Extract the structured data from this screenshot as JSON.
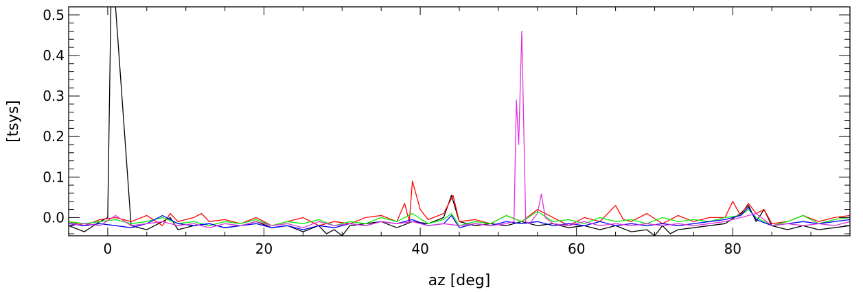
{
  "chart_data": {
    "type": "line",
    "title": "",
    "xlabel": "az [deg]",
    "ylabel": "[tsys]",
    "xlim": [
      -5,
      95
    ],
    "ylim": [
      -0.045,
      0.52
    ],
    "xticks": [
      0,
      20,
      40,
      60,
      80
    ],
    "xtick_labels": [
      "0",
      "20",
      "40",
      "60",
      "80"
    ],
    "yticks": [
      0.0,
      0.1,
      0.2,
      0.3,
      0.4,
      0.5
    ],
    "ytick_labels": [
      "0.0",
      "0.1",
      "0.2",
      "0.3",
      "0.4",
      "0.5"
    ],
    "grid": false,
    "legend": "none",
    "series": [
      {
        "color": "#000000",
        "x": [
          -5,
          -3,
          -1,
          0,
          0.4,
          1,
          3,
          5,
          7,
          8,
          9,
          11,
          13,
          15,
          17,
          19,
          21,
          23,
          25,
          27,
          28,
          29,
          30,
          31,
          33,
          35,
          37,
          39,
          41,
          43,
          44,
          45,
          47,
          49,
          51,
          53,
          55,
          57,
          59,
          61,
          63,
          65,
          67,
          69,
          70,
          71,
          72,
          73,
          75,
          77,
          79,
          81,
          82,
          83,
          84,
          85,
          87,
          89,
          91,
          93,
          95
        ],
        "y": [
          -0.02,
          -0.035,
          -0.01,
          0.0,
          0.52,
          0.52,
          -0.02,
          -0.03,
          -0.01,
          0.0,
          -0.03,
          -0.02,
          -0.015,
          -0.025,
          -0.02,
          -0.01,
          -0.025,
          -0.02,
          -0.035,
          -0.02,
          -0.04,
          -0.03,
          -0.045,
          -0.02,
          -0.015,
          -0.01,
          -0.025,
          -0.01,
          -0.015,
          0.0,
          0.055,
          -0.01,
          -0.02,
          -0.015,
          -0.02,
          -0.01,
          -0.02,
          -0.015,
          -0.025,
          -0.02,
          -0.03,
          -0.02,
          -0.035,
          -0.03,
          -0.045,
          -0.02,
          -0.04,
          -0.03,
          -0.025,
          -0.02,
          -0.015,
          0.01,
          0.03,
          -0.01,
          0.02,
          -0.02,
          -0.03,
          -0.02,
          -0.03,
          -0.025,
          -0.02
        ]
      },
      {
        "color": "#ff0000",
        "x": [
          -5,
          -3,
          -1,
          1,
          3,
          5,
          7,
          8,
          9,
          11,
          12,
          13,
          15,
          17,
          19,
          21,
          23,
          25,
          27,
          29,
          31,
          33,
          35,
          37,
          38,
          38.6,
          39,
          40,
          41,
          43,
          44.2,
          45,
          47,
          49,
          51,
          53,
          55,
          57,
          59,
          61,
          63,
          65,
          66,
          67,
          69,
          71,
          73,
          75,
          77,
          79,
          80,
          81,
          82,
          83,
          84,
          85,
          87,
          89,
          91,
          93,
          95
        ],
        "y": [
          -0.01,
          -0.02,
          -0.005,
          0.0,
          -0.01,
          0.005,
          -0.02,
          0.01,
          -0.01,
          0.0,
          0.01,
          -0.01,
          -0.005,
          -0.015,
          0.0,
          -0.02,
          -0.01,
          0.0,
          -0.02,
          -0.01,
          -0.015,
          0.0,
          0.005,
          -0.01,
          0.035,
          -0.01,
          0.09,
          0.02,
          -0.005,
          0.01,
          0.055,
          -0.01,
          -0.005,
          -0.015,
          0.005,
          -0.01,
          0.02,
          0.0,
          -0.02,
          0.0,
          -0.01,
          0.03,
          -0.005,
          -0.01,
          0.01,
          -0.015,
          0.005,
          -0.01,
          0.0,
          0.0,
          0.04,
          0.005,
          0.035,
          0.01,
          0.02,
          -0.015,
          -0.01,
          0.005,
          -0.01,
          0.0,
          0.005
        ]
      },
      {
        "color": "#00ee00",
        "x": [
          -5,
          -3,
          -1,
          1,
          3,
          5,
          7,
          9,
          11,
          13,
          15,
          17,
          19,
          21,
          23,
          25,
          27,
          29,
          31,
          33,
          35,
          37,
          39,
          41,
          43,
          44,
          45,
          47,
          49,
          51,
          53,
          55,
          57,
          59,
          61,
          63,
          65,
          67,
          69,
          71,
          73,
          75,
          77,
          79,
          81,
          82,
          83,
          85,
          87,
          89,
          91,
          93,
          95
        ],
        "y": [
          -0.01,
          -0.015,
          -0.01,
          -0.005,
          -0.015,
          -0.01,
          0.0,
          -0.015,
          -0.01,
          -0.02,
          -0.01,
          -0.015,
          -0.005,
          -0.02,
          -0.01,
          -0.015,
          -0.005,
          -0.02,
          -0.01,
          -0.015,
          0.0,
          -0.01,
          0.01,
          -0.015,
          -0.005,
          0.01,
          -0.02,
          -0.01,
          -0.015,
          0.005,
          -0.01,
          0.015,
          -0.01,
          -0.005,
          -0.015,
          0.0,
          -0.01,
          -0.005,
          -0.015,
          0.0,
          -0.01,
          -0.005,
          -0.01,
          0.0,
          0.005,
          0.02,
          0.0,
          -0.02,
          -0.01,
          0.005,
          -0.015,
          -0.005,
          0.0
        ]
      },
      {
        "color": "#0000ff",
        "x": [
          -5,
          -3,
          -1,
          1,
          3,
          5,
          7,
          9,
          11,
          13,
          15,
          17,
          19,
          21,
          23,
          25,
          27,
          29,
          31,
          33,
          35,
          37,
          39,
          41,
          43,
          44,
          45,
          47,
          49,
          51,
          53,
          55,
          57,
          59,
          61,
          63,
          65,
          67,
          69,
          71,
          73,
          75,
          77,
          79,
          81,
          82,
          83,
          85,
          87,
          89,
          91,
          93,
          95
        ],
        "y": [
          -0.015,
          -0.02,
          -0.015,
          -0.02,
          -0.025,
          -0.015,
          0.005,
          -0.015,
          -0.02,
          -0.015,
          -0.025,
          -0.02,
          -0.015,
          -0.025,
          -0.02,
          -0.03,
          -0.02,
          -0.025,
          -0.015,
          -0.02,
          -0.01,
          -0.015,
          -0.005,
          -0.02,
          -0.015,
          0.005,
          -0.025,
          -0.015,
          -0.02,
          -0.01,
          -0.015,
          -0.01,
          -0.02,
          -0.015,
          -0.02,
          -0.01,
          -0.02,
          -0.015,
          -0.02,
          -0.015,
          -0.02,
          -0.015,
          -0.01,
          -0.005,
          0.005,
          0.025,
          -0.005,
          -0.02,
          -0.015,
          -0.01,
          -0.015,
          -0.01,
          -0.005
        ]
      },
      {
        "color": "#dd33dd",
        "x": [
          -5,
          -3,
          -1,
          1,
          3,
          5,
          7,
          9,
          11,
          13,
          15,
          17,
          19,
          21,
          23,
          25,
          27,
          29,
          31,
          33,
          35,
          37,
          39,
          41,
          43,
          45,
          47,
          49,
          51,
          52,
          52.3,
          52.6,
          53,
          53.5,
          54,
          55,
          55.5,
          56,
          57,
          59,
          61,
          63,
          65,
          67,
          69,
          71,
          73,
          75,
          77,
          79,
          81,
          83,
          85,
          87,
          89,
          91,
          93,
          95
        ],
        "y": [
          -0.02,
          -0.015,
          -0.02,
          0.005,
          -0.02,
          -0.015,
          -0.01,
          -0.02,
          -0.015,
          -0.025,
          -0.015,
          -0.02,
          -0.01,
          -0.02,
          -0.015,
          -0.025,
          -0.01,
          -0.02,
          -0.015,
          -0.02,
          -0.01,
          -0.015,
          -0.01,
          -0.02,
          -0.015,
          -0.02,
          -0.015,
          -0.02,
          -0.015,
          -0.01,
          0.29,
          0.18,
          0.46,
          -0.01,
          -0.015,
          0.01,
          0.058,
          0.0,
          -0.015,
          -0.02,
          -0.01,
          -0.02,
          -0.015,
          -0.02,
          -0.015,
          -0.02,
          -0.015,
          -0.02,
          -0.015,
          -0.01,
          0.0,
          0.01,
          -0.02,
          -0.015,
          -0.02,
          -0.015,
          -0.02,
          -0.01
        ]
      }
    ]
  }
}
